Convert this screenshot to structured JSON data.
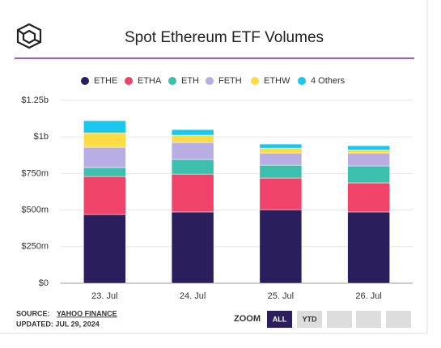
{
  "chart_data": {
    "type": "stacked-bar",
    "title": "Spot Ethereum ETF Volumes",
    "categories": [
      "23. Jul",
      "24. Jul",
      "25. Jul",
      "26. Jul"
    ],
    "series": [
      {
        "name": "ETHE",
        "color": "#2a1f5c",
        "values": [
          470,
          487,
          503,
          487
        ]
      },
      {
        "name": "ETHA",
        "color": "#f0436a",
        "values": [
          260,
          259,
          216,
          199
        ]
      },
      {
        "name": "ETH",
        "color": "#3dbfad",
        "values": [
          61,
          100,
          88,
          116
        ]
      },
      {
        "name": "FETH",
        "color": "#b9aee3",
        "values": [
          138,
          116,
          83,
          88
        ]
      },
      {
        "name": "ETHW",
        "color": "#fbdc45",
        "values": [
          99,
          50,
          33,
          22
        ]
      },
      {
        "name": "4 Others",
        "color": "#1bc8ec",
        "values": [
          83,
          38,
          28,
          28
        ]
      }
    ],
    "ylim": [
      0,
      1250
    ],
    "yticks": [
      {
        "value": 0,
        "label": "$0"
      },
      {
        "value": 250,
        "label": "$250m"
      },
      {
        "value": 500,
        "label": "$500m"
      },
      {
        "value": 750,
        "label": "$750m"
      },
      {
        "value": 1000,
        "label": "$1b"
      },
      {
        "value": 1250,
        "label": "$1.25b"
      }
    ],
    "grid": true,
    "legend": "top",
    "source_label": "SOURCE:",
    "source": "YAHOO FINANCE",
    "updated": "UPDATED: JUL 29, 2024",
    "zoom_label": "ZOOM",
    "zoom_options": [
      "ALL",
      "YTD"
    ]
  }
}
